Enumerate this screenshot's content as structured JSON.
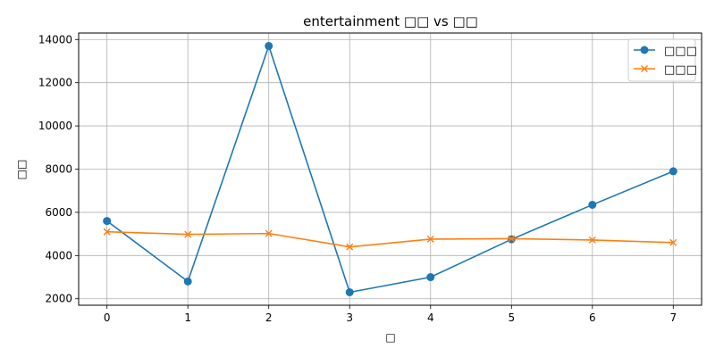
{
  "chart_data": {
    "type": "line",
    "title": "entertainment □□ vs □□",
    "xlabel": "□",
    "ylabel": "□□",
    "x": [
      0,
      1,
      2,
      3,
      4,
      5,
      6,
      7
    ],
    "xlim": [
      -0.35,
      7.35
    ],
    "ylim": [
      1700,
      14300
    ],
    "x_ticks": [
      0,
      1,
      2,
      3,
      4,
      5,
      6,
      7
    ],
    "y_ticks": [
      2000,
      4000,
      6000,
      8000,
      10000,
      12000,
      14000
    ],
    "grid": true,
    "legend_position": "top-right",
    "series": [
      {
        "name": "□□□",
        "color": "#1f77b4",
        "marker": "circle",
        "values": [
          5600,
          2800,
          13700,
          2300,
          3000,
          4750,
          6350,
          7900
        ]
      },
      {
        "name": "□□□",
        "color": "#ff7f0e",
        "marker": "x",
        "values": [
          5100,
          4980,
          5020,
          4400,
          4760,
          4780,
          4720,
          4600
        ]
      }
    ]
  }
}
